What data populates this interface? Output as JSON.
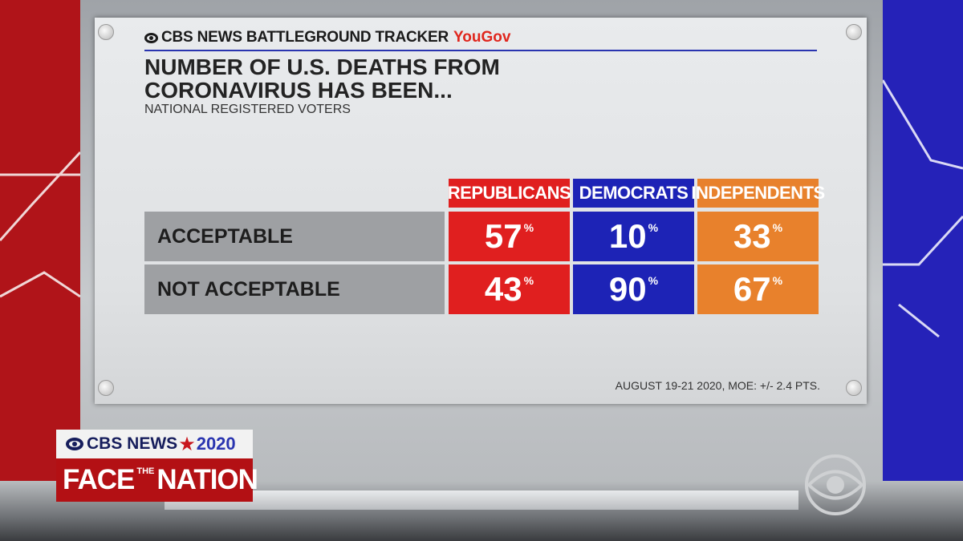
{
  "header": {
    "brand": "CBS NEWS BATTLEGROUND TRACKER",
    "partner": "YouGov"
  },
  "title_line1": "NUMBER OF U.S. DEATHS FROM",
  "title_line2": "CORONAVIRUS HAS BEEN...",
  "subtitle": "NATIONAL REGISTERED VOTERS",
  "footnote": "AUGUST 19-21 2020, MOE: +/- 2.4 PTS.",
  "colors": {
    "republicans": "#e01f1f",
    "democrats": "#1d23b6",
    "independents": "#e8812c"
  },
  "chart_data": {
    "type": "table",
    "columns": [
      "REPUBLICANS",
      "DEMOCRATS",
      "INDEPENDENTS"
    ],
    "rows": [
      {
        "label": "ACCEPTABLE",
        "values": [
          57,
          10,
          33
        ]
      },
      {
        "label": "NOT ACCEPTABLE",
        "values": [
          43,
          90,
          67
        ]
      }
    ],
    "unit": "%"
  },
  "lower_third": {
    "network": "CBS NEWS",
    "year": "2020",
    "show_face": "FACE",
    "show_the": "THE",
    "show_nation": "NATION"
  }
}
